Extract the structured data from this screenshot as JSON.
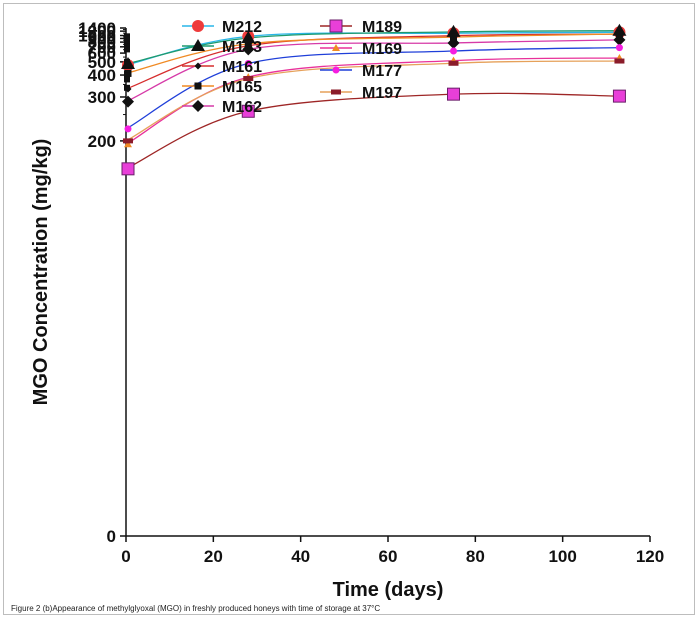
{
  "caption": "Figure 2 (b)Appearance of methylglyoxal (MGO) in freshly produced honeys with time of storage at 37°C",
  "chart_data": {
    "type": "line",
    "title": "",
    "xlabel": "Time (days)",
    "ylabel": "MGO Concentration (mg/kg)",
    "xlim": [
      0,
      120
    ],
    "ylim": [
      0,
      1400
    ],
    "y_scale": "reciprocal",
    "xticks": [
      0,
      20,
      40,
      60,
      80,
      100,
      120
    ],
    "yticks": [
      0,
      200,
      300,
      400,
      500,
      600,
      700,
      800,
      900,
      1000,
      1200,
      1400
    ],
    "grid": false,
    "legend": "top-left, two columns",
    "x": [
      0,
      28,
      75,
      113
    ],
    "series": [
      {
        "name": "M212",
        "color": "#29b6e8",
        "marker": "circle-large",
        "marker_color": "#ee3b3b",
        "values": [
          470,
          970,
          1095,
          1140
        ]
      },
      {
        "name": "M163",
        "color": "#1f9a6e",
        "marker": "triangle",
        "marker_color": "#111111",
        "values": [
          480,
          915,
          1160,
          1225
        ]
      },
      {
        "name": "M161",
        "color": "#d62d2d",
        "marker": "diamond-small",
        "marker_color": "#111111",
        "values": [
          330,
          720,
          995,
          1055
        ]
      },
      {
        "name": "M165",
        "color": "#f08a24",
        "marker": "square",
        "marker_color": "#111111",
        "values": [
          410,
          760,
          945,
          1065
        ]
      },
      {
        "name": "M162",
        "color": "#d63aa8",
        "marker": "diamond",
        "marker_color": "#111111",
        "values": [
          285,
          655,
          780,
          858
        ]
      },
      {
        "name": "M189",
        "color": "#9e2626",
        "marker": "square-large",
        "marker_color": "#e83fd8",
        "values": [
          165,
          258,
          310,
          303
        ]
      },
      {
        "name": "M169",
        "color": "#e8319a",
        "marker": "triangle-small",
        "marker_color": "#f08a24",
        "values": [
          195,
          388,
          512,
          540
        ]
      },
      {
        "name": "M177",
        "color": "#1f3fd9",
        "marker": "circle",
        "marker_color": "#f51de0",
        "values": [
          220,
          485,
          630,
          685
        ]
      },
      {
        "name": "M197",
        "color": "#e6a15a",
        "marker": "bar",
        "marker_color": "#8b1c2a",
        "values": [
          200,
          380,
          487,
          508
        ]
      }
    ]
  }
}
